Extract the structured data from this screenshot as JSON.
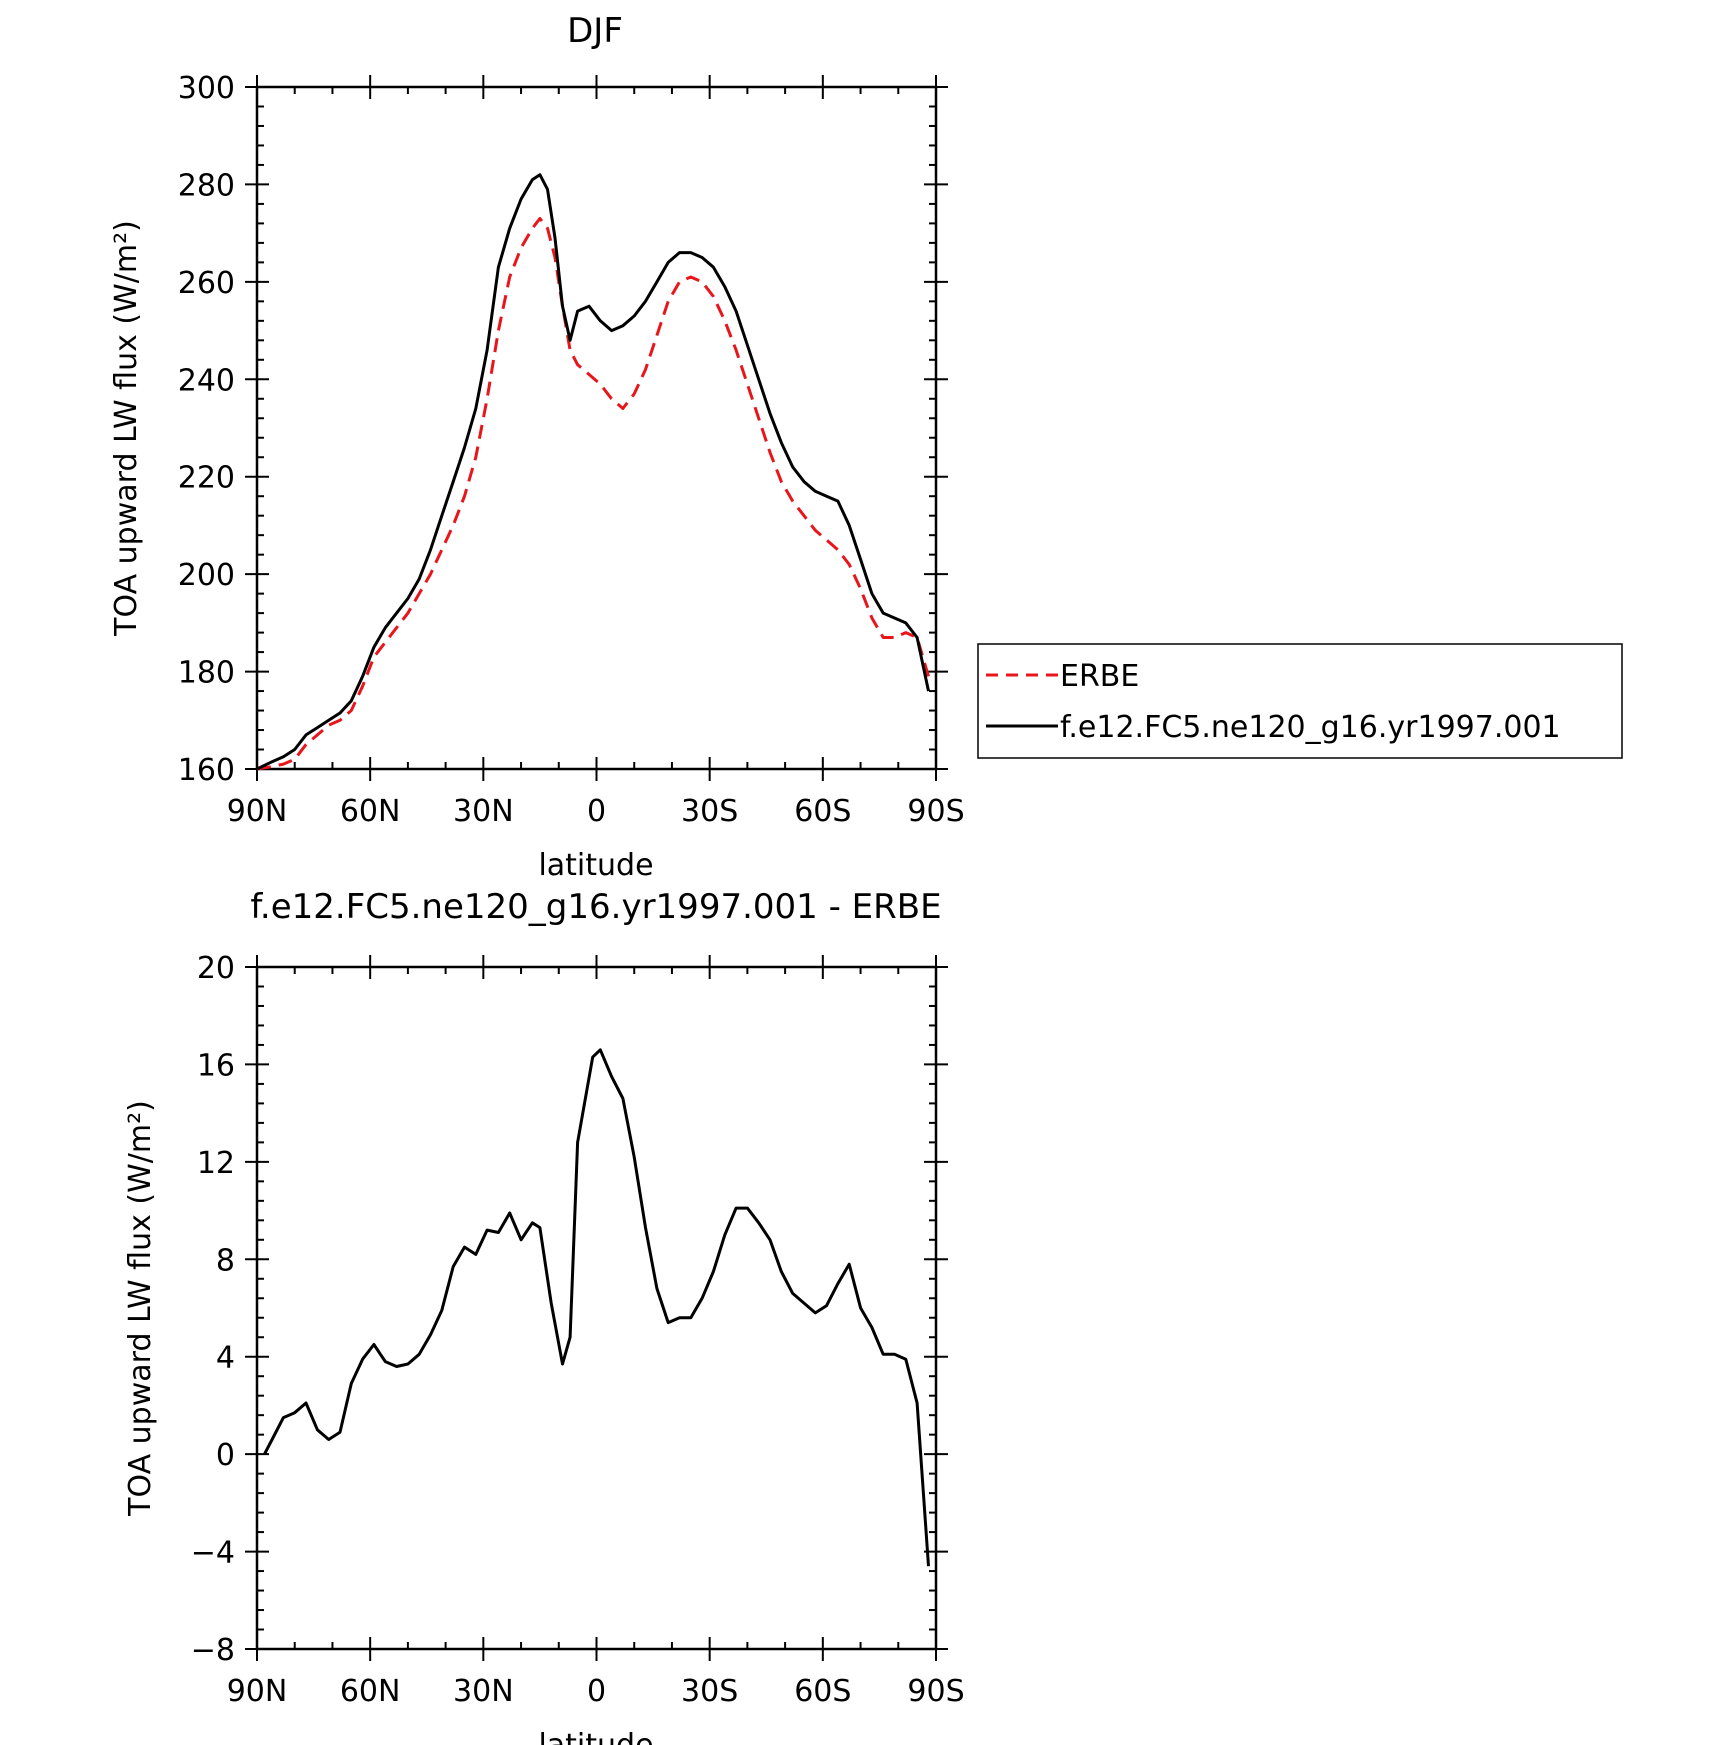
{
  "chart_data": [
    {
      "type": "line",
      "title": "DJF",
      "xlabel": "latitude",
      "ylabel": "TOA upward LW flux (W/m²)",
      "xlim": [
        -90,
        90
      ],
      "ylim": [
        160,
        300
      ],
      "xticks": [
        -90,
        -60,
        -30,
        0,
        30,
        60,
        90
      ],
      "xticklabels": [
        "90N",
        "60N",
        "30N",
        "0",
        "30S",
        "60S",
        "90S"
      ],
      "yticks": [
        160,
        180,
        200,
        220,
        240,
        260,
        280,
        300
      ],
      "yticklabels": [
        "160",
        "180",
        "200",
        "220",
        "240",
        "260",
        "280",
        "300"
      ],
      "legend_position": "right",
      "series": [
        {
          "name": "ERBE",
          "color": "#e8161b",
          "dash": true,
          "x": [
            -90,
            -86,
            -83,
            -80,
            -77,
            -74,
            -71,
            -68,
            -65,
            -62,
            -59,
            -56,
            -53,
            -50,
            -47,
            -44,
            -41,
            -38,
            -35,
            -32,
            -29,
            -26,
            -23,
            -20,
            -17,
            -15,
            -13,
            -11,
            -9,
            -7,
            -5,
            -2,
            1,
            4,
            7,
            10,
            13,
            16,
            19,
            22,
            25,
            28,
            31,
            34,
            37,
            40,
            43,
            46,
            49,
            52,
            55,
            58,
            61,
            64,
            67,
            70,
            73,
            76,
            79,
            82,
            85,
            88
          ],
          "y": [
            160,
            160.5,
            161,
            162,
            165,
            167,
            169,
            170,
            172,
            177,
            183,
            186,
            189,
            192,
            196,
            200,
            205,
            210,
            216,
            224,
            236,
            250,
            261,
            267,
            271,
            273,
            271,
            265,
            255,
            246,
            243,
            241,
            239,
            236,
            234,
            237,
            242,
            249,
            256,
            260,
            261,
            260,
            257,
            252,
            246,
            239,
            232,
            225,
            219,
            215,
            212,
            209,
            207,
            205,
            202,
            197,
            191,
            187,
            187,
            188,
            187,
            179
          ]
        },
        {
          "name": "f.e12.FC5.ne120_g16.yr1997.001",
          "color": "#000000",
          "dash": false,
          "x": [
            -90,
            -86,
            -83,
            -80,
            -77,
            -74,
            -71,
            -68,
            -65,
            -62,
            -59,
            -56,
            -53,
            -50,
            -47,
            -44,
            -41,
            -38,
            -35,
            -32,
            -29,
            -26,
            -23,
            -20,
            -17,
            -15,
            -13,
            -11,
            -9,
            -7,
            -5,
            -2,
            1,
            4,
            7,
            10,
            13,
            16,
            19,
            22,
            25,
            28,
            31,
            34,
            37,
            40,
            43,
            46,
            49,
            52,
            55,
            58,
            61,
            64,
            67,
            70,
            73,
            76,
            79,
            82,
            85,
            88
          ],
          "y": [
            160,
            161.5,
            162.5,
            164,
            167,
            168.5,
            170,
            171.5,
            174,
            179,
            185,
            189,
            192,
            195,
            199,
            205,
            212,
            219,
            226,
            234,
            246,
            263,
            271,
            277,
            281,
            282,
            279,
            269,
            255,
            248,
            254,
            255,
            252,
            250,
            251,
            253,
            256,
            260,
            264,
            266,
            266,
            265,
            263,
            259,
            254,
            247,
            240,
            233,
            227,
            222,
            219,
            217,
            216,
            215,
            210,
            203,
            196,
            192,
            191,
            190,
            187,
            176
          ]
        }
      ]
    },
    {
      "type": "line",
      "title": "f.e12.FC5.ne120_g16.yr1997.001 - ERBE",
      "xlabel": "latitude",
      "ylabel": "TOA upward LW flux (W/m²)",
      "xlim": [
        -90,
        90
      ],
      "ylim": [
        -8,
        20
      ],
      "xticks": [
        -90,
        -60,
        -30,
        0,
        30,
        60,
        90
      ],
      "xticklabels": [
        "90N",
        "60N",
        "30N",
        "0",
        "30S",
        "60S",
        "90S"
      ],
      "yticks": [
        -8,
        -4,
        0,
        4,
        8,
        12,
        16,
        20
      ],
      "yticklabels": [
        "−8",
        "−4",
        "0",
        "4",
        "8",
        "12",
        "16",
        "20"
      ],
      "series": [
        {
          "color": "#000000",
          "dash": false,
          "x": [
            -88,
            -86,
            -83,
            -80,
            -77,
            -74,
            -71,
            -68,
            -65,
            -62,
            -59,
            -56,
            -53,
            -50,
            -47,
            -44,
            -41,
            -38,
            -35,
            -32,
            -29,
            -26,
            -23,
            -20,
            -17,
            -15,
            -12,
            -9,
            -7,
            -5,
            -1,
            1,
            4,
            7,
            10,
            13,
            16,
            19,
            22,
            25,
            28,
            31,
            34,
            37,
            40,
            43,
            46,
            49,
            52,
            55,
            58,
            61,
            64,
            67,
            70,
            73,
            76,
            79,
            82,
            85,
            88
          ],
          "y": [
            0,
            0.6,
            1.5,
            1.7,
            2.1,
            1.0,
            0.6,
            0.9,
            2.9,
            3.9,
            4.5,
            3.8,
            3.6,
            3.7,
            4.1,
            4.9,
            5.9,
            7.7,
            8.5,
            8.2,
            9.2,
            9.1,
            9.9,
            8.8,
            9.5,
            9.3,
            6.2,
            3.7,
            4.8,
            12.8,
            16.3,
            16.6,
            15.5,
            14.6,
            12.2,
            9.3,
            6.8,
            5.4,
            5.6,
            5.6,
            6.4,
            7.5,
            9.0,
            10.1,
            10.1,
            9.5,
            8.8,
            7.5,
            6.6,
            6.2,
            5.8,
            6.1,
            7.0,
            7.8,
            6.0,
            5.2,
            4.1,
            4.1,
            3.9,
            2.1,
            -4.6
          ]
        }
      ]
    }
  ]
}
